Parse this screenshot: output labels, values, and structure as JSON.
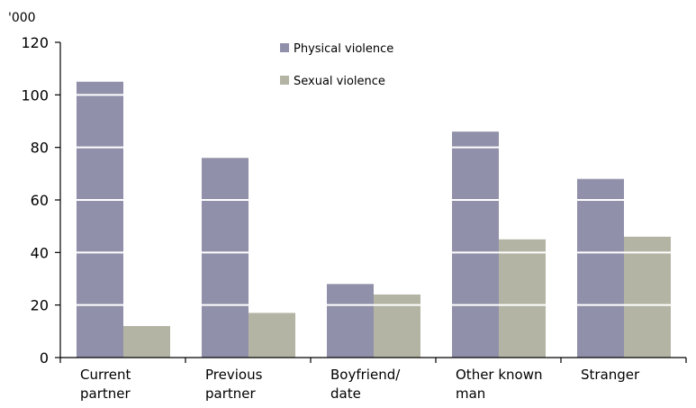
{
  "chart_data": {
    "type": "bar",
    "unit_label": "'000",
    "categories": [
      [
        "Current",
        "partner"
      ],
      [
        "Previous",
        "partner"
      ],
      [
        "Boyfriend/",
        "date"
      ],
      [
        "Other known",
        "man"
      ],
      [
        "Stranger"
      ]
    ],
    "series": [
      {
        "name": "Physical violence",
        "color": "#9090aa",
        "values": [
          105,
          76,
          28,
          86,
          68
        ]
      },
      {
        "name": "Sexual violence",
        "color": "#b4b4a4",
        "values": [
          12,
          17,
          24,
          45,
          46
        ]
      }
    ],
    "y_ticks": [
      0,
      20,
      40,
      60,
      80,
      100,
      120
    ],
    "ylim": [
      0,
      120
    ],
    "grid": "white lines across bars",
    "legend_position": "top-center"
  }
}
